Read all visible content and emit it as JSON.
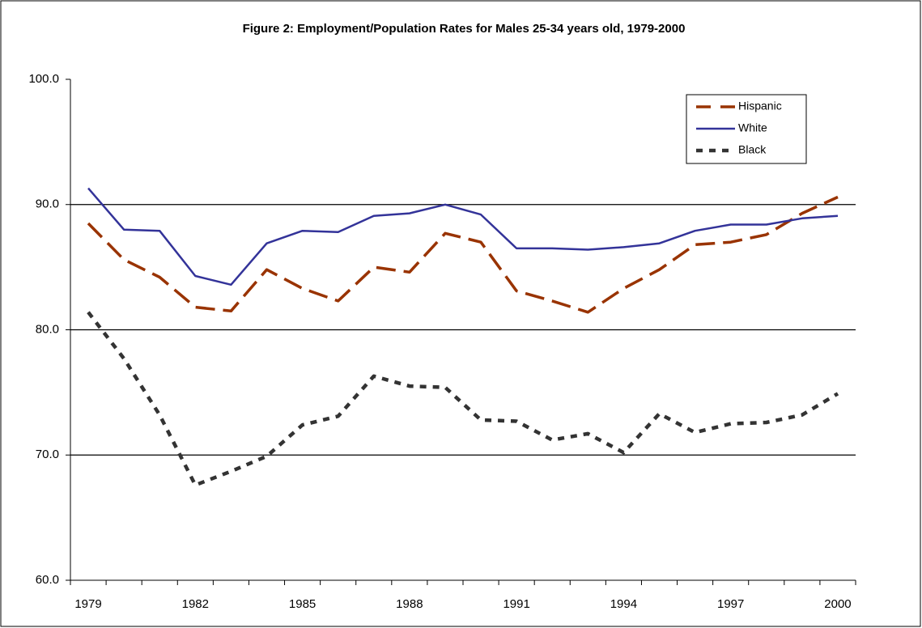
{
  "chart_data": {
    "type": "line",
    "title": "Figure 2: Employment/Population Rates for Males 25-34 years old, 1979-2000",
    "categories": [
      "1979",
      null,
      null,
      "1982",
      null,
      null,
      "1985",
      null,
      null,
      "1988",
      null,
      null,
      "1991",
      null,
      null,
      "1994",
      null,
      null,
      "1997",
      null,
      null,
      "2000"
    ],
    "series": [
      {
        "name": "Hispanic",
        "color": "#993300",
        "values": [
          88.5,
          85.6,
          84.2,
          81.8,
          81.5,
          84.8,
          83.3,
          82.3,
          85.0,
          84.6,
          87.7,
          87.0,
          83.1,
          82.3,
          81.4,
          83.3,
          84.8,
          86.8,
          87.0,
          87.6,
          89.3,
          90.6
        ]
      },
      {
        "name": "White",
        "color": "#333399",
        "values": [
          91.3,
          88.0,
          87.9,
          84.3,
          83.6,
          86.9,
          87.9,
          87.8,
          89.1,
          89.3,
          90.0,
          89.2,
          86.5,
          86.5,
          86.4,
          86.6,
          86.9,
          87.9,
          88.4,
          88.4,
          88.9,
          89.1
        ]
      },
      {
        "name": "Black",
        "color": "#333333",
        "values": [
          81.4,
          77.7,
          73.2,
          67.6,
          68.7,
          69.9,
          72.4,
          73.1,
          76.3,
          75.5,
          75.4,
          72.8,
          72.7,
          71.2,
          71.7,
          70.2,
          73.3,
          71.8,
          72.5,
          72.6,
          73.2,
          74.9
        ]
      }
    ],
    "ylim": [
      60,
      100
    ],
    "yticks": [
      {
        "value": 60,
        "label": "60.0"
      },
      {
        "value": 70,
        "label": "70.0"
      },
      {
        "value": 80,
        "label": "80.0"
      },
      {
        "value": 90,
        "label": "90.0"
      },
      {
        "value": 100,
        "label": "100.0"
      }
    ],
    "grid": true
  }
}
